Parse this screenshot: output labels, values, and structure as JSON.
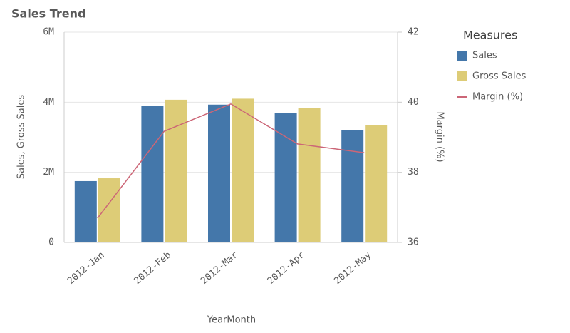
{
  "chart_data": {
    "type": "combo",
    "title": "Sales Trend",
    "categories": [
      "2012-Jan",
      "2012-Feb",
      "2012-Mar",
      "2012-Apr",
      "2012-May"
    ],
    "series": [
      {
        "name": "Sales",
        "color": "#4477aa",
        "type": "bar",
        "values": [
          1750000,
          3900000,
          3930000,
          3700000,
          3210000
        ]
      },
      {
        "name": "Gross Sales",
        "color": "#ddcc77",
        "type": "bar",
        "values": [
          1830000,
          4070000,
          4100000,
          3840000,
          3340000
        ]
      },
      {
        "name": "Margin (%)",
        "color": "#cc6677",
        "type": "line",
        "axis": "y2",
        "values": [
          36.69,
          39.17,
          39.95,
          38.81,
          38.56
        ]
      }
    ],
    "ylim": [
      0,
      6000000
    ],
    "yticks": [
      {
        "value": 0,
        "label": "0"
      },
      {
        "value": 2000000,
        "label": "2M"
      },
      {
        "value": 4000000,
        "label": "4M"
      },
      {
        "value": 6000000,
        "label": "6M"
      }
    ],
    "y2lim": [
      36,
      42
    ],
    "y2ticks": [
      36,
      38,
      40,
      42
    ],
    "xlabel": "YearMonth",
    "ylabel": "Sales, Gross Sales",
    "y2label": "Margin (%)",
    "legend_title": "Measures",
    "legend": "right",
    "grid": true
  }
}
